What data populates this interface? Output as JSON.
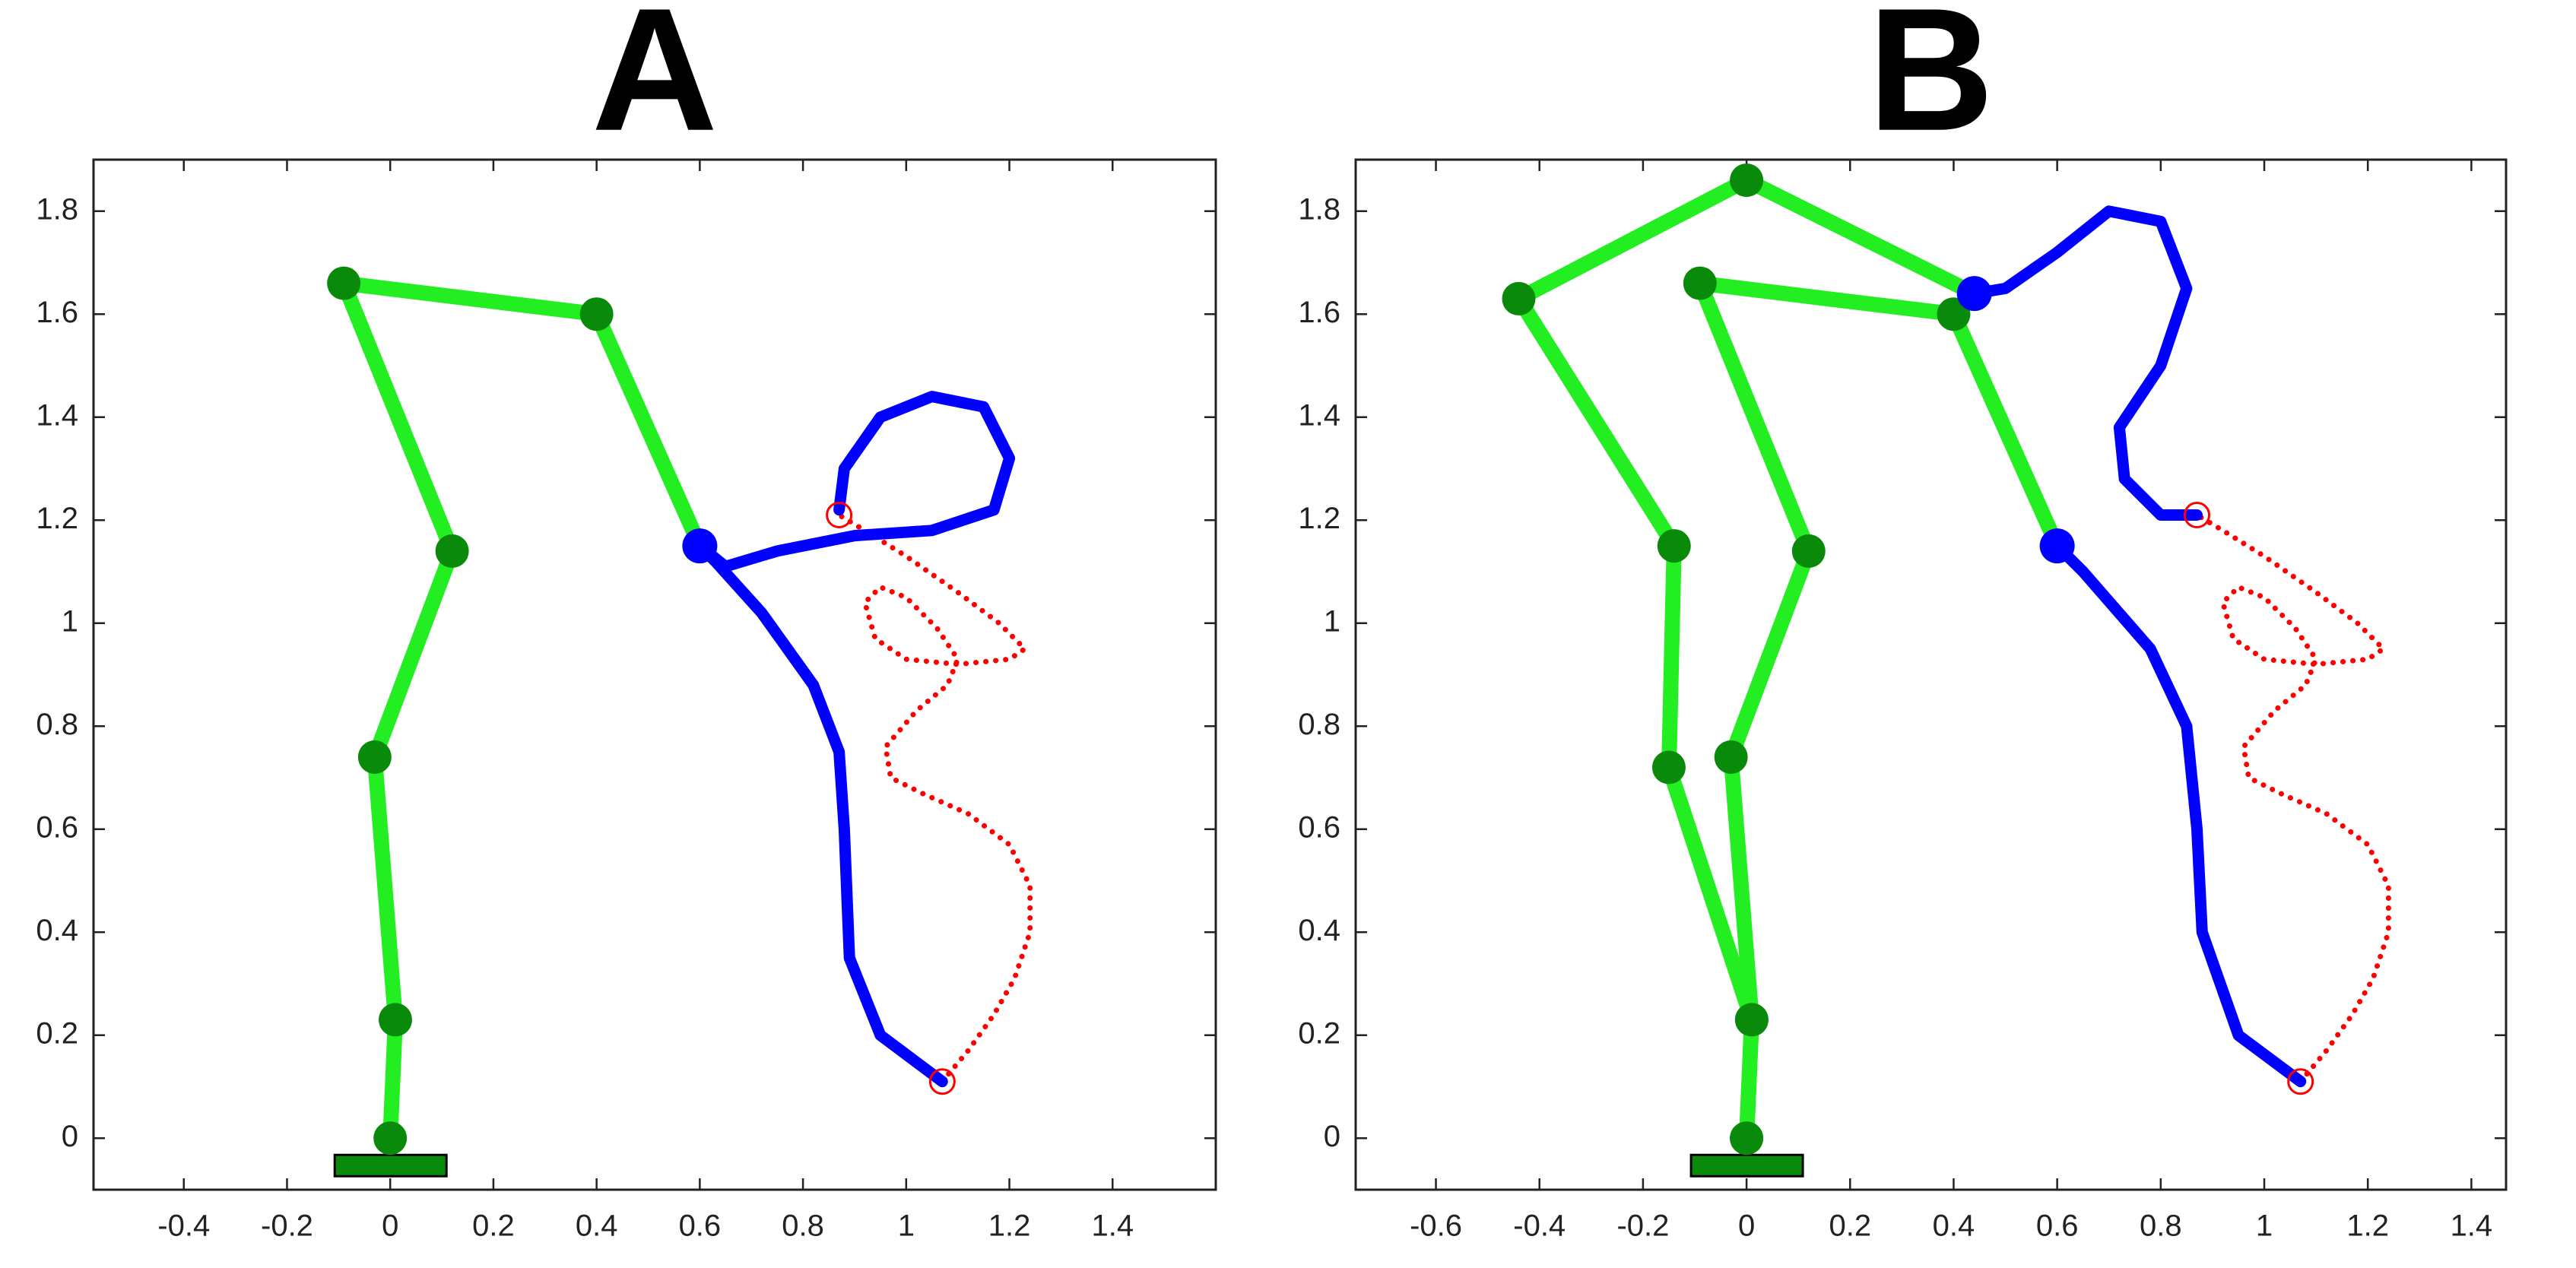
{
  "chart_data": [
    {
      "type": "line",
      "title": "A",
      "xlim": [
        -0.575,
        1.6
      ],
      "ylim": [
        -0.1,
        1.9
      ],
      "xticks": [
        -0.4,
        -0.2,
        0,
        0.2,
        0.4,
        0.6,
        0.8,
        1,
        1.2,
        1.4
      ],
      "yticks": [
        0,
        0.2,
        0.4,
        0.6,
        0.8,
        1,
        1.2,
        1.4,
        1.6,
        1.8
      ],
      "series": [
        {
          "style": "dotted",
          "color": "#ff0000",
          "x": [
            1.07,
            1.12,
            1.17,
            1.21,
            1.24,
            1.24,
            1.2,
            1.12,
            1.03,
            0.97,
            0.96,
            1.02,
            1.08,
            1.1,
            1.06,
            1.0,
            0.95,
            0.92,
            0.94,
            1.0,
            1.1,
            1.2,
            1.23,
            1.18,
            1.1,
            1.0,
            0.92,
            0.87
          ],
          "values": [
            0.11,
            0.17,
            0.24,
            0.31,
            0.4,
            0.49,
            0.57,
            0.63,
            0.67,
            0.7,
            0.76,
            0.83,
            0.88,
            0.93,
            0.99,
            1.05,
            1.07,
            1.04,
            0.97,
            0.93,
            0.92,
            0.93,
            0.95,
            1.0,
            1.06,
            1.13,
            1.18,
            1.21
          ]
        },
        {
          "style": "thick-line",
          "color": "#0000ff",
          "x": [
            1.07,
            0.95,
            0.89,
            0.88,
            0.87,
            0.82,
            0.72,
            0.63,
            0.6,
            0.65,
            0.75,
            0.9,
            1.05,
            1.17,
            1.2,
            1.15,
            1.05,
            0.95,
            0.88,
            0.87
          ],
          "values": [
            0.11,
            0.2,
            0.35,
            0.6,
            0.75,
            0.88,
            1.02,
            1.12,
            1.15,
            1.11,
            1.14,
            1.17,
            1.18,
            1.22,
            1.32,
            1.42,
            1.44,
            1.4,
            1.3,
            1.22
          ]
        },
        {
          "style": "arm",
          "color": "#22ee22",
          "marker_color": "#0a8a0a",
          "x": [
            0,
            0.01,
            -0.03,
            0.12,
            -0.09,
            0.4,
            0.6
          ],
          "values": [
            0,
            0.23,
            0.74,
            1.14,
            1.66,
            1.6,
            1.15
          ]
        },
        {
          "style": "dot",
          "color": "#0000ff",
          "x": [
            0.6
          ],
          "values": [
            1.15
          ]
        },
        {
          "style": "circle",
          "color": "#ff0000",
          "x": [
            1.07,
            0.87
          ],
          "values": [
            0.11,
            1.21
          ]
        }
      ]
    },
    {
      "type": "line",
      "title": "B",
      "xlim": [
        -0.755,
        1.467
      ],
      "ylim": [
        -0.1,
        1.9
      ],
      "xticks": [
        -0.6,
        -0.4,
        -0.2,
        0,
        0.2,
        0.4,
        0.6,
        0.8,
        1,
        1.2,
        1.4
      ],
      "yticks": [
        0,
        0.2,
        0.4,
        0.6,
        0.8,
        1,
        1.2,
        1.4,
        1.6,
        1.8
      ],
      "series": [
        {
          "style": "dotted",
          "color": "#ff0000",
          "x": [
            1.07,
            1.12,
            1.17,
            1.21,
            1.24,
            1.24,
            1.2,
            1.12,
            1.03,
            0.97,
            0.96,
            1.02,
            1.08,
            1.1,
            1.06,
            1.0,
            0.95,
            0.92,
            0.94,
            1.0,
            1.1,
            1.2,
            1.23,
            1.18,
            1.1,
            1.0,
            0.92,
            0.87
          ],
          "values": [
            0.11,
            0.17,
            0.24,
            0.31,
            0.4,
            0.49,
            0.57,
            0.63,
            0.67,
            0.7,
            0.76,
            0.83,
            0.88,
            0.93,
            0.99,
            1.05,
            1.07,
            1.04,
            0.97,
            0.93,
            0.92,
            0.93,
            0.95,
            1.0,
            1.06,
            1.13,
            1.18,
            1.21
          ]
        },
        {
          "style": "thick-line",
          "color": "#0000ff",
          "x": [
            1.07,
            0.95,
            0.88,
            0.87,
            0.85,
            0.78,
            0.65,
            0.6
          ],
          "values": [
            0.11,
            0.2,
            0.4,
            0.6,
            0.8,
            0.95,
            1.1,
            1.15
          ]
        },
        {
          "style": "thick-line",
          "color": "#0000ff",
          "x": [
            0.44,
            0.5,
            0.6,
            0.7,
            0.8,
            0.85,
            0.8,
            0.72,
            0.73,
            0.8,
            0.87
          ],
          "values": [
            1.64,
            1.65,
            1.72,
            1.8,
            1.78,
            1.65,
            1.5,
            1.38,
            1.28,
            1.21,
            1.21
          ]
        },
        {
          "style": "arm",
          "color": "#22ee22",
          "marker_color": "#0a8a0a",
          "x": [
            0,
            0.01,
            -0.03,
            0.12,
            -0.09,
            0.4,
            0.6
          ],
          "values": [
            0,
            0.23,
            0.74,
            1.14,
            1.66,
            1.6,
            1.15
          ]
        },
        {
          "style": "arm",
          "color": "#22ee22",
          "marker_color": "#0a8a0a",
          "x": [
            0,
            0.01,
            -0.15,
            -0.14,
            -0.44,
            0,
            0.44
          ],
          "values": [
            0,
            0.23,
            0.72,
            1.15,
            1.63,
            1.86,
            1.64
          ]
        },
        {
          "style": "dot",
          "color": "#0000ff",
          "x": [
            0.6,
            0.44
          ],
          "values": [
            1.15,
            1.64
          ]
        },
        {
          "style": "circle",
          "color": "#ff0000",
          "x": [
            1.07,
            0.87
          ],
          "values": [
            0.11,
            1.21
          ]
        }
      ]
    }
  ]
}
